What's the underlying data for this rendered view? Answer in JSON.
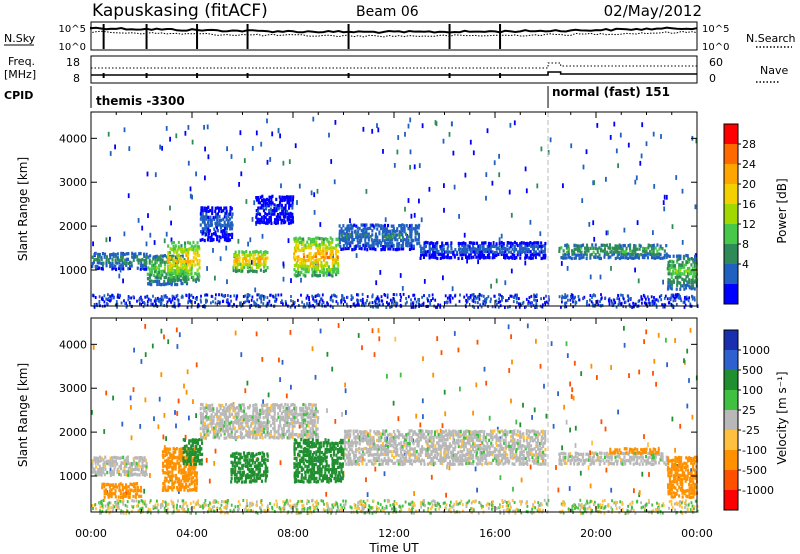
{
  "header": {
    "station": "Kapuskasing (fitACF)",
    "beam": "Beam 06",
    "date": "02/May/2012"
  },
  "params": {
    "nsky_label": "N.Sky",
    "nsearch_label": "N.Search",
    "freq_label": "Freq.",
    "freq_unit": "[MHz]",
    "nave_label": "Nave",
    "cpid_label": "CPID",
    "noise_ticks": [
      "10^5",
      "10^0"
    ],
    "freq_ticks": [
      "18",
      "8"
    ],
    "nave_ticks": [
      "60",
      "0"
    ],
    "cpid_segments": [
      {
        "label": "themis -3300",
        "start_hour": 0,
        "end_hour": 18.1
      },
      {
        "label": "normal (fast) 151",
        "start_hour": 18.1,
        "end_hour": 24
      }
    ]
  },
  "x_axis": {
    "label": "Time UT",
    "range_hours": [
      0,
      24
    ],
    "ticks": [
      "00:00",
      "04:00",
      "08:00",
      "12:00",
      "16:00",
      "20:00",
      "00:00"
    ]
  },
  "chart_data": [
    {
      "type": "heatmap",
      "name": "power",
      "ylabel": "Slant Range [km]",
      "ylim": [
        180,
        4600
      ],
      "yticks": [
        "1000",
        "2000",
        "3000",
        "4000"
      ],
      "colorbar_label": "Power [dB]",
      "colorbar_ticks": [
        "28",
        "24",
        "20",
        "16",
        "12",
        "8",
        "4"
      ],
      "colorbar_colors": [
        "#ff0000",
        "#ff6a00",
        "#ffa500",
        "#f5d000",
        "#a0d800",
        "#48c848",
        "#2e8b57",
        "#2060c0",
        "#0000ff"
      ],
      "regions": [
        {
          "t0": 0.0,
          "t1": 2.2,
          "r0": 1050,
          "r1": 1450,
          "level": 0.35
        },
        {
          "t0": 2.2,
          "t1": 3.8,
          "r0": 700,
          "r1": 1400,
          "level": 0.55
        },
        {
          "t0": 3.0,
          "t1": 4.3,
          "r0": 800,
          "r1": 1700,
          "level": 0.9
        },
        {
          "t0": 4.3,
          "t1": 5.6,
          "r0": 1700,
          "r1": 2500,
          "level": 0.2
        },
        {
          "t0": 5.6,
          "t1": 7.0,
          "r0": 1000,
          "r1": 1500,
          "level": 0.95
        },
        {
          "t0": 6.5,
          "t1": 8.0,
          "r0": 2100,
          "r1": 2750,
          "level": 0.15
        },
        {
          "t0": 8.0,
          "t1": 9.8,
          "r0": 900,
          "r1": 1800,
          "level": 1.0
        },
        {
          "t0": 9.8,
          "t1": 13.0,
          "r0": 1500,
          "r1": 2100,
          "level": 0.3
        },
        {
          "t0": 13.0,
          "t1": 18.0,
          "r0": 1300,
          "r1": 1700,
          "level": 0.2
        },
        {
          "t0": 18.5,
          "t1": 22.8,
          "r0": 1300,
          "r1": 1650,
          "level": 0.45
        },
        {
          "t0": 22.8,
          "t1": 24.0,
          "r0": 600,
          "r1": 1400,
          "level": 0.55
        }
      ]
    },
    {
      "type": "heatmap",
      "name": "velocity",
      "ylabel": "Slant Range [km]",
      "ylim": [
        180,
        4600
      ],
      "yticks": [
        "1000",
        "2000",
        "3000",
        "4000"
      ],
      "colorbar_label": "Velocity [m s⁻¹]",
      "colorbar_ticks": [
        "1000",
        "500",
        "100",
        "25",
        "-25",
        "-100",
        "-500",
        "-1000"
      ],
      "colorbar_colors": [
        "#1a2fb0",
        "#2f60d0",
        "#1f8f2f",
        "#40c040",
        "#b8b8b8",
        "#ffc040",
        "#ff9000",
        "#ff5000",
        "#ff0000"
      ],
      "regions": [
        {
          "t0": 0.0,
          "t1": 2.2,
          "r0": 1050,
          "r1": 1500,
          "v": 0
        },
        {
          "t0": 0.4,
          "t1": 2.0,
          "r0": 550,
          "r1": 900,
          "v": -300
        },
        {
          "t0": 2.8,
          "t1": 4.2,
          "r0": 700,
          "r1": 1700,
          "v": -200
        },
        {
          "t0": 3.6,
          "t1": 4.4,
          "r0": 1300,
          "r1": 1900,
          "v": 150
        },
        {
          "t0": 4.3,
          "t1": 9.0,
          "r0": 1900,
          "r1": 2700,
          "v": 0
        },
        {
          "t0": 5.5,
          "t1": 7.0,
          "r0": 900,
          "r1": 1600,
          "v": 150
        },
        {
          "t0": 8.0,
          "t1": 10.0,
          "r0": 900,
          "r1": 1900,
          "v": 200
        },
        {
          "t0": 10.0,
          "t1": 18.0,
          "r0": 1300,
          "r1": 2100,
          "v": 0
        },
        {
          "t0": 18.5,
          "t1": 22.8,
          "r0": 1300,
          "r1": 1600,
          "v": 0
        },
        {
          "t0": 20.5,
          "t1": 22.5,
          "r0": 1550,
          "r1": 1700,
          "v": -300
        },
        {
          "t0": 22.8,
          "t1": 24.0,
          "r0": 550,
          "r1": 1500,
          "v": -400
        }
      ]
    }
  ]
}
